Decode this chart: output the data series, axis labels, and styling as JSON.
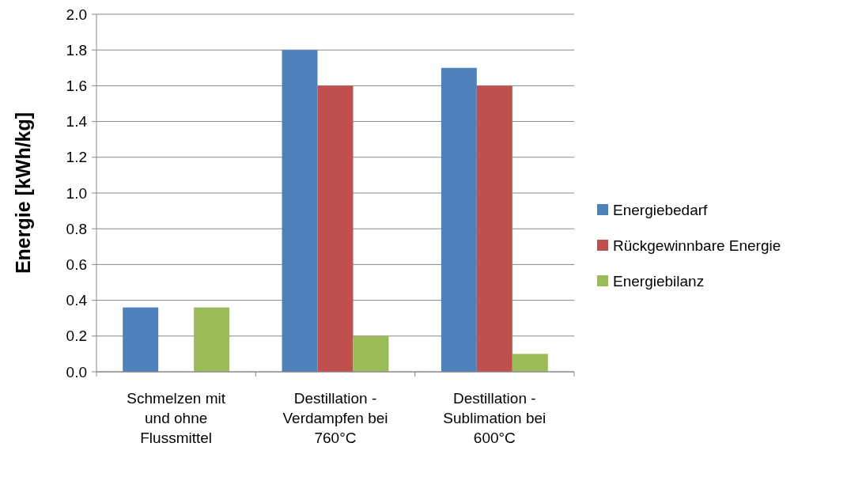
{
  "chart_data": {
    "type": "bar",
    "ylabel": "Energie [kWh/kg]",
    "categories": [
      "Schmelzen mit und ohne Flussmittel",
      "Destillation - Verdampfen bei 760°C",
      "Destillation - Sublimation bei 600°C"
    ],
    "series": [
      {
        "name": "Energiebedarf",
        "color": "#4f81bd",
        "values": [
          0.36,
          1.8,
          1.7
        ]
      },
      {
        "name": "Rückgewinnbare Energie",
        "color": "#c0504d",
        "values": [
          0,
          1.6,
          1.6
        ]
      },
      {
        "name": "Energiebilanz",
        "color": "#9bbb59",
        "values": [
          0.36,
          0.2,
          0.1
        ]
      }
    ],
    "ylim": [
      0,
      2
    ],
    "yticks": [
      {
        "value": 0,
        "label": "0.0"
      },
      {
        "value": 0.2,
        "label": "0.2"
      },
      {
        "value": 0.4,
        "label": "0.4"
      },
      {
        "value": 0.6,
        "label": "0.6"
      },
      {
        "value": 0.8,
        "label": "0.8"
      },
      {
        "value": 1,
        "label": "1.0"
      },
      {
        "value": 1.2,
        "label": "1.2"
      },
      {
        "value": 1.4,
        "label": "1.4"
      },
      {
        "value": 1.6,
        "label": "1.6"
      },
      {
        "value": 1.8,
        "label": "1.8"
      },
      {
        "value": 2,
        "label": "2.0"
      }
    ],
    "grid": "y",
    "legend": "right"
  }
}
